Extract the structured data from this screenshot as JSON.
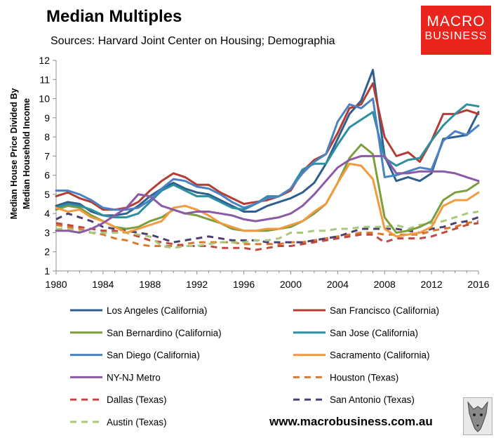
{
  "header": {
    "title": "Median Multiples",
    "subtitle": "Sources: Harvard Joint Center on Housing; Demographia"
  },
  "logo": {
    "line1": "MACRO",
    "line2": "BUSINESS",
    "color": "#e8241c"
  },
  "footer": {
    "website": "www.macrobusiness.com.au",
    "emblem_icon": "wolf-icon"
  },
  "chart_data": {
    "type": "line",
    "title": "Median Multiples",
    "xlabel": "",
    "ylabel": "Median House Price Divided By Median Household Income",
    "ylabel_lines": [
      "Median House Price Divided By",
      "Median Household Income"
    ],
    "xlim": [
      1980,
      2016
    ],
    "ylim": [
      1,
      12
    ],
    "x": [
      1980,
      1981,
      1982,
      1983,
      1984,
      1985,
      1986,
      1987,
      1988,
      1989,
      1990,
      1991,
      1992,
      1993,
      1994,
      1995,
      1996,
      1997,
      1998,
      1999,
      2000,
      2001,
      2002,
      2003,
      2004,
      2005,
      2006,
      2007,
      2008,
      2009,
      2010,
      2011,
      2012,
      2013,
      2014,
      2015,
      2016
    ],
    "x_ticks": [
      "1980",
      "1984",
      "1988",
      "1992",
      "1996",
      "2000",
      "2004",
      "2008",
      "2012",
      "2016"
    ],
    "y_ticks": [
      "1",
      "2",
      "3",
      "4",
      "5",
      "6",
      "7",
      "8",
      "9",
      "10",
      "11",
      "12"
    ],
    "grid": false,
    "legend": "bottom",
    "series": [
      {
        "name": "Los Angeles (California)",
        "color": "#2e5f8f",
        "dash": false,
        "values": [
          4.4,
          4.6,
          4.5,
          4.1,
          3.9,
          3.9,
          4.0,
          4.4,
          4.9,
          5.3,
          5.6,
          5.3,
          5.1,
          5.0,
          4.7,
          4.4,
          4.1,
          4.1,
          4.4,
          4.6,
          4.8,
          5.1,
          5.6,
          6.6,
          7.9,
          9.2,
          9.9,
          11.5,
          7.0,
          5.7,
          5.9,
          5.7,
          6.1,
          7.9,
          8.0,
          8.1,
          9.3
        ]
      },
      {
        "name": "San Francisco (California)",
        "color": "#b33d35",
        "dash": false,
        "values": [
          4.9,
          5.1,
          4.8,
          4.6,
          4.2,
          4.2,
          4.3,
          4.6,
          5.2,
          5.7,
          6.1,
          5.9,
          5.5,
          5.5,
          5.1,
          4.8,
          4.5,
          4.6,
          4.7,
          4.9,
          5.2,
          6.2,
          6.8,
          7.1,
          8.2,
          9.5,
          9.7,
          10.8,
          8.0,
          7.0,
          7.2,
          6.7,
          7.8,
          9.2,
          9.2,
          9.4,
          9.2
        ]
      },
      {
        "name": "San Bernardino (California)",
        "color": "#7e9e3e",
        "dash": false,
        "values": [
          4.2,
          4.4,
          4.3,
          3.9,
          3.6,
          3.3,
          3.2,
          3.3,
          3.6,
          3.8,
          4.2,
          4.0,
          3.9,
          3.7,
          3.5,
          3.2,
          3.1,
          3.1,
          3.1,
          3.2,
          3.3,
          3.6,
          4.0,
          4.5,
          5.6,
          6.9,
          7.6,
          7.1,
          3.8,
          3.0,
          3.1,
          3.3,
          3.6,
          4.7,
          5.1,
          5.2,
          5.6
        ]
      },
      {
        "name": "San Jose (California)",
        "color": "#2e8f9f",
        "dash": false,
        "values": [
          4.3,
          4.5,
          4.4,
          4.2,
          3.9,
          3.8,
          3.8,
          4.0,
          4.6,
          5.2,
          5.5,
          5.2,
          4.9,
          4.9,
          4.6,
          4.3,
          4.2,
          4.5,
          4.9,
          4.9,
          5.3,
          6.3,
          6.6,
          6.6,
          7.6,
          8.5,
          8.9,
          9.3,
          6.9,
          6.5,
          6.8,
          6.9,
          7.8,
          8.6,
          9.2,
          9.7,
          9.6
        ]
      },
      {
        "name": "San Diego (California)",
        "color": "#4a82c4",
        "dash": false,
        "values": [
          5.2,
          5.2,
          5.0,
          4.7,
          4.3,
          4.2,
          4.2,
          4.3,
          4.7,
          5.3,
          5.8,
          5.7,
          5.4,
          5.3,
          5.0,
          4.6,
          4.3,
          4.5,
          4.8,
          4.9,
          5.3,
          6.1,
          6.7,
          7.1,
          8.8,
          9.7,
          9.5,
          10.0,
          5.9,
          6.0,
          6.2,
          6.4,
          6.3,
          7.8,
          8.3,
          8.1,
          8.6
        ]
      },
      {
        "name": "Sacramento (California)",
        "color": "#f39a3e",
        "dash": false,
        "values": [
          4.3,
          4.1,
          4.2,
          3.8,
          3.6,
          3.3,
          3.0,
          3.2,
          3.4,
          3.6,
          4.3,
          4.4,
          4.2,
          3.9,
          3.5,
          3.3,
          3.1,
          3.1,
          3.2,
          3.2,
          3.4,
          3.6,
          4.1,
          4.5,
          5.6,
          6.6,
          6.5,
          5.8,
          3.2,
          2.8,
          2.9,
          3.0,
          3.3,
          4.4,
          4.7,
          4.7,
          5.1
        ]
      },
      {
        "name": "NY-NJ Metro",
        "color": "#8a5aa6",
        "dash": false,
        "values": [
          3.1,
          3.1,
          3.0,
          3.2,
          3.5,
          3.9,
          4.3,
          5.0,
          4.9,
          4.4,
          4.2,
          4.0,
          4.1,
          4.1,
          4.0,
          3.9,
          3.7,
          3.6,
          3.7,
          3.8,
          4.0,
          4.4,
          5.0,
          5.7,
          6.4,
          6.8,
          7.0,
          7.0,
          7.0,
          6.1,
          6.1,
          6.2,
          6.2,
          6.2,
          6.1,
          5.9,
          5.7
        ]
      },
      {
        "name": "Houston (Texas)",
        "color": "#d97b2e",
        "dash": true,
        "values": [
          3.4,
          3.3,
          3.2,
          3.0,
          2.9,
          2.7,
          2.6,
          2.4,
          2.3,
          2.3,
          2.3,
          2.4,
          2.5,
          2.5,
          2.5,
          2.5,
          2.4,
          2.4,
          2.4,
          2.4,
          2.5,
          2.5,
          2.6,
          2.7,
          2.8,
          2.9,
          3.0,
          3.0,
          2.9,
          2.9,
          2.9,
          2.9,
          3.1,
          3.2,
          3.3,
          3.5,
          3.6
        ]
      },
      {
        "name": "Dallas (Texas)",
        "color": "#c04a40",
        "dash": true,
        "values": [
          3.5,
          3.4,
          3.3,
          3.2,
          3.1,
          3.1,
          3.0,
          2.8,
          2.6,
          2.5,
          2.4,
          2.3,
          2.3,
          2.3,
          2.2,
          2.2,
          2.2,
          2.1,
          2.2,
          2.3,
          2.3,
          2.4,
          2.5,
          2.6,
          2.7,
          2.8,
          2.9,
          2.9,
          2.5,
          2.7,
          2.7,
          2.7,
          2.8,
          3.0,
          3.2,
          3.4,
          3.5
        ]
      },
      {
        "name": "San Antonio (Texas)",
        "color": "#4b4070",
        "dash": true,
        "values": [
          3.7,
          4.0,
          3.8,
          3.6,
          3.3,
          3.2,
          3.1,
          3.0,
          2.9,
          2.7,
          2.5,
          2.6,
          2.7,
          2.8,
          2.7,
          2.6,
          2.6,
          2.6,
          2.5,
          2.5,
          2.5,
          2.5,
          2.6,
          2.7,
          2.8,
          3.0,
          3.2,
          3.2,
          3.2,
          3.2,
          3.1,
          3.0,
          3.2,
          3.3,
          3.5,
          3.6,
          3.8
        ]
      },
      {
        "name": "Austin (Texas)",
        "color": "#a8c87a",
        "dash": true,
        "values": [
          3.2,
          3.2,
          3.1,
          3.0,
          3.0,
          3.0,
          3.0,
          2.9,
          2.8,
          2.3,
          2.2,
          2.3,
          2.3,
          2.4,
          2.5,
          2.5,
          2.5,
          2.6,
          2.6,
          2.7,
          3.0,
          3.0,
          3.1,
          3.1,
          3.2,
          3.2,
          3.3,
          3.3,
          3.3,
          3.4,
          3.2,
          3.4,
          3.5,
          3.6,
          3.8,
          4.0,
          4.1
        ]
      }
    ]
  }
}
